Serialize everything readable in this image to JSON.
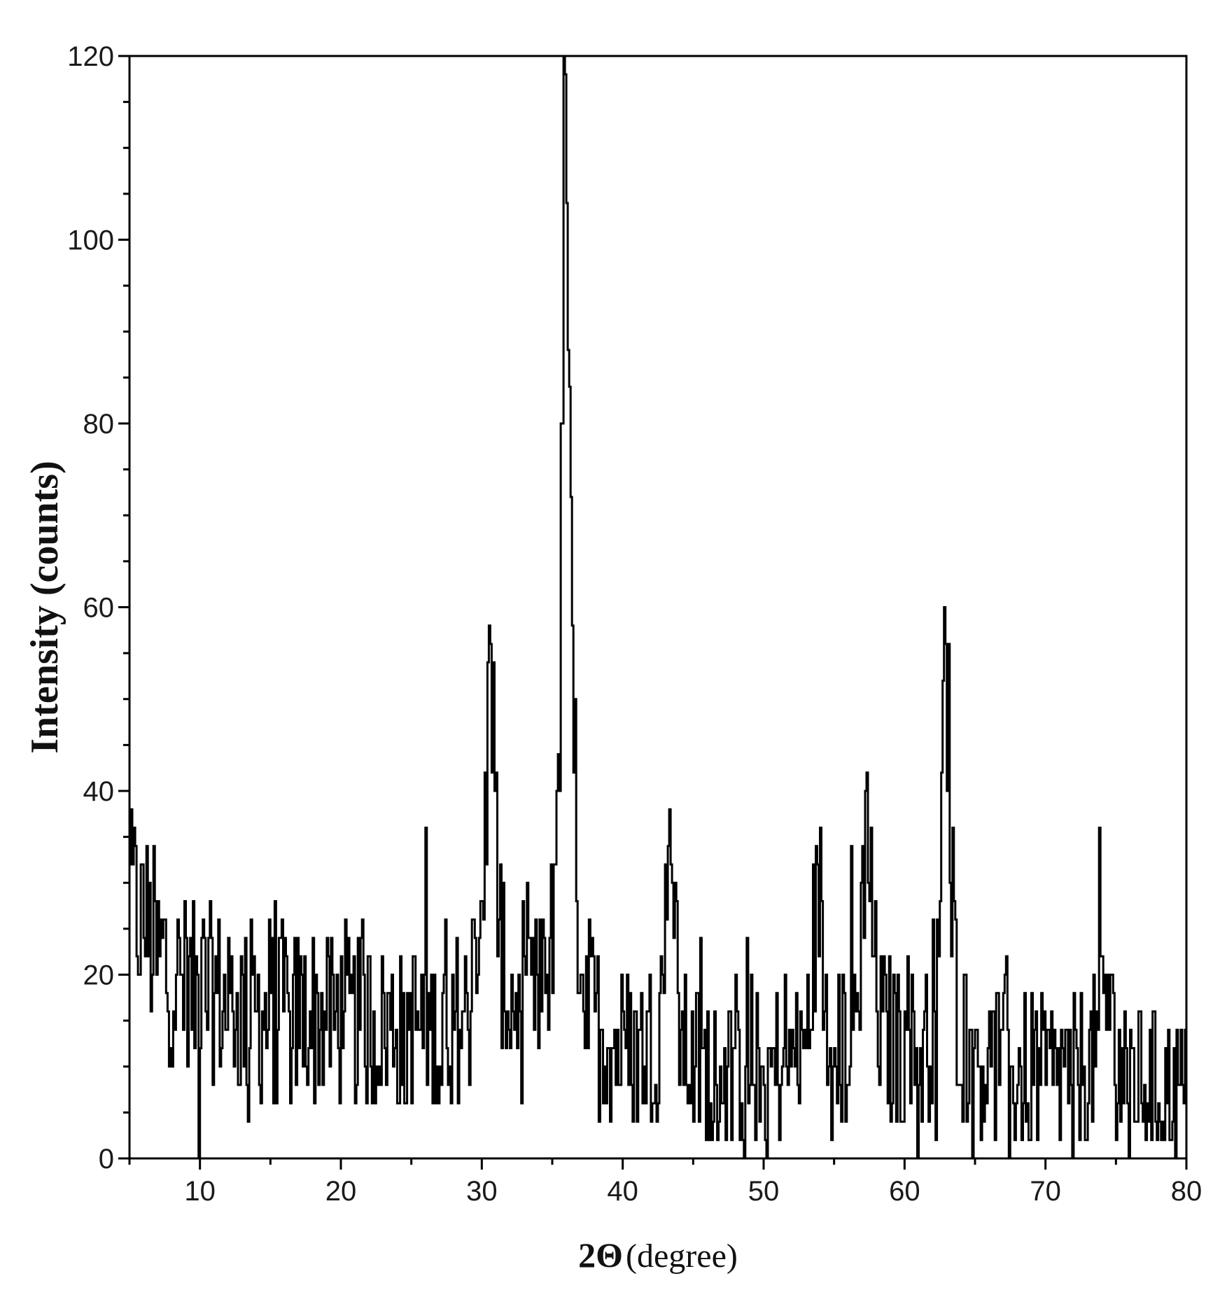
{
  "chart_data": {
    "type": "line",
    "title": "",
    "xlabel_main": "2Θ",
    "xlabel_sub": "(degree)",
    "ylabel": "Intensity (counts)",
    "xlim": [
      5,
      80
    ],
    "ylim": [
      0,
      120
    ],
    "xticks": [
      10,
      20,
      30,
      40,
      50,
      60,
      70,
      80
    ],
    "yticks": [
      0,
      20,
      40,
      60,
      80,
      100,
      120
    ],
    "grid": false,
    "legend": "none",
    "line_color": "#000000",
    "noise_step_deg": 0.1,
    "baseline": [
      [
        5,
        28
      ],
      [
        6,
        25
      ],
      [
        7,
        22
      ],
      [
        8,
        20
      ],
      [
        10,
        18
      ],
      [
        13,
        16
      ],
      [
        20,
        15
      ],
      [
        25,
        14
      ],
      [
        29,
        14
      ],
      [
        30,
        16
      ],
      [
        32,
        14
      ],
      [
        34,
        13
      ],
      [
        37,
        14
      ],
      [
        38,
        12
      ],
      [
        40,
        11
      ],
      [
        45,
        9
      ],
      [
        50,
        9
      ],
      [
        55,
        10
      ],
      [
        58,
        11
      ],
      [
        60,
        10
      ],
      [
        65,
        10
      ],
      [
        70,
        9
      ],
      [
        75,
        9
      ],
      [
        80,
        7
      ]
    ],
    "peaks": [
      {
        "x": 30.6,
        "y": 56
      },
      {
        "x": 35.9,
        "y": 118
      },
      {
        "x": 43.3,
        "y": 38
      },
      {
        "x": 53.8,
        "y": 32
      },
      {
        "x": 57.3,
        "y": 42
      },
      {
        "x": 62.9,
        "y": 56
      },
      {
        "x": 74.2,
        "y": 20
      }
    ]
  }
}
